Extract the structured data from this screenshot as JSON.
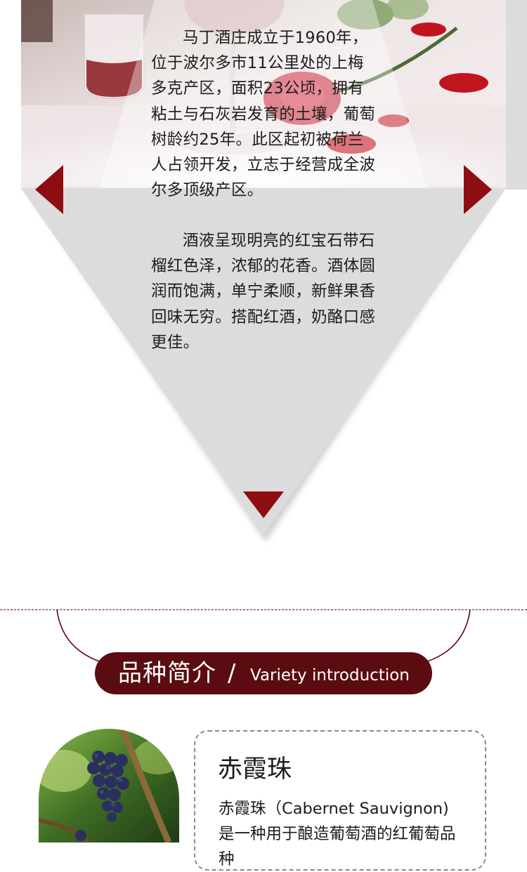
{
  "winery": {
    "paragraphs": [
      "马丁酒庄成立于1960年，位于波尔多市11公里处的上梅多克产区，面积23公顷，拥有粘土与石灰岩发育的土壤，葡萄树龄约25年。此区起初被荷兰人占领开发，立志于经营成全波尔多顶级产区。",
      "酒液呈现明亮的红宝石带石榴红色泽，浓郁的花香。酒体圆润而饱满，单宁柔顺，新鲜果香回味无穷。搭配红酒，奶酪口感更佳。"
    ]
  },
  "section": {
    "title_cn": "品种简介",
    "separator": "/",
    "title_en": "Variety introduction"
  },
  "variety": {
    "name": "赤霞珠",
    "description": "赤霞珠（Cabernet Sauvignon)是一种用于酿造葡萄酒的红葡萄品种"
  },
  "colors": {
    "accent": "#8e0d12",
    "pill": "#5a0c10",
    "panel_gray": "#dcdcdc"
  }
}
